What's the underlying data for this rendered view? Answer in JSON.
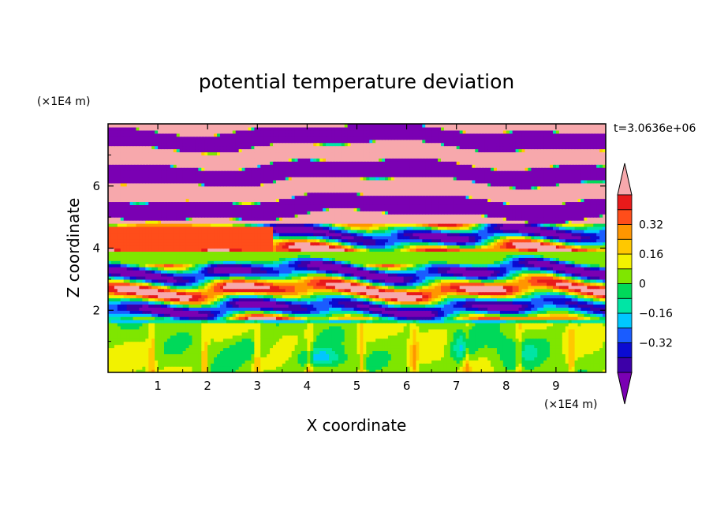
{
  "chart_data": {
    "type": "heatmap",
    "title": "potential temperature deviation",
    "xlabel": "X coordinate",
    "ylabel": "Z coordinate",
    "x_unit": "(×1E4 m)",
    "y_unit": "(×1E4 m)",
    "time_label": "t=3.0636e+06",
    "xlim": [
      0,
      10
    ],
    "ylim": [
      0,
      8
    ],
    "x_ticks": [
      "1",
      "2",
      "3",
      "4",
      "5",
      "6",
      "7",
      "8",
      "9"
    ],
    "y_ticks": [
      "2",
      "4",
      "6"
    ],
    "colorbar": {
      "levels": [
        -0.48,
        -0.4,
        -0.32,
        -0.24,
        -0.16,
        -0.08,
        0,
        0.08,
        0.16,
        0.24,
        0.32,
        0.4,
        0.48
      ],
      "colors": [
        "#7a00b3",
        "#3d00a8",
        "#0b0bd2",
        "#1a5cff",
        "#00c7ff",
        "#00e5a5",
        "#00d95a",
        "#7fe600",
        "#f2f200",
        "#ffc800",
        "#ff9600",
        "#ff4d1a",
        "#e81a1a",
        "#f7a8ac"
      ],
      "labels": [
        {
          "value": -0.32,
          "text": "−0.32"
        },
        {
          "value": -0.16,
          "text": "−0.16"
        },
        {
          "value": 0,
          "text": "0"
        },
        {
          "value": 0.16,
          "text": "0.16"
        },
        {
          "value": 0.32,
          "text": "0.32"
        }
      ]
    }
  }
}
